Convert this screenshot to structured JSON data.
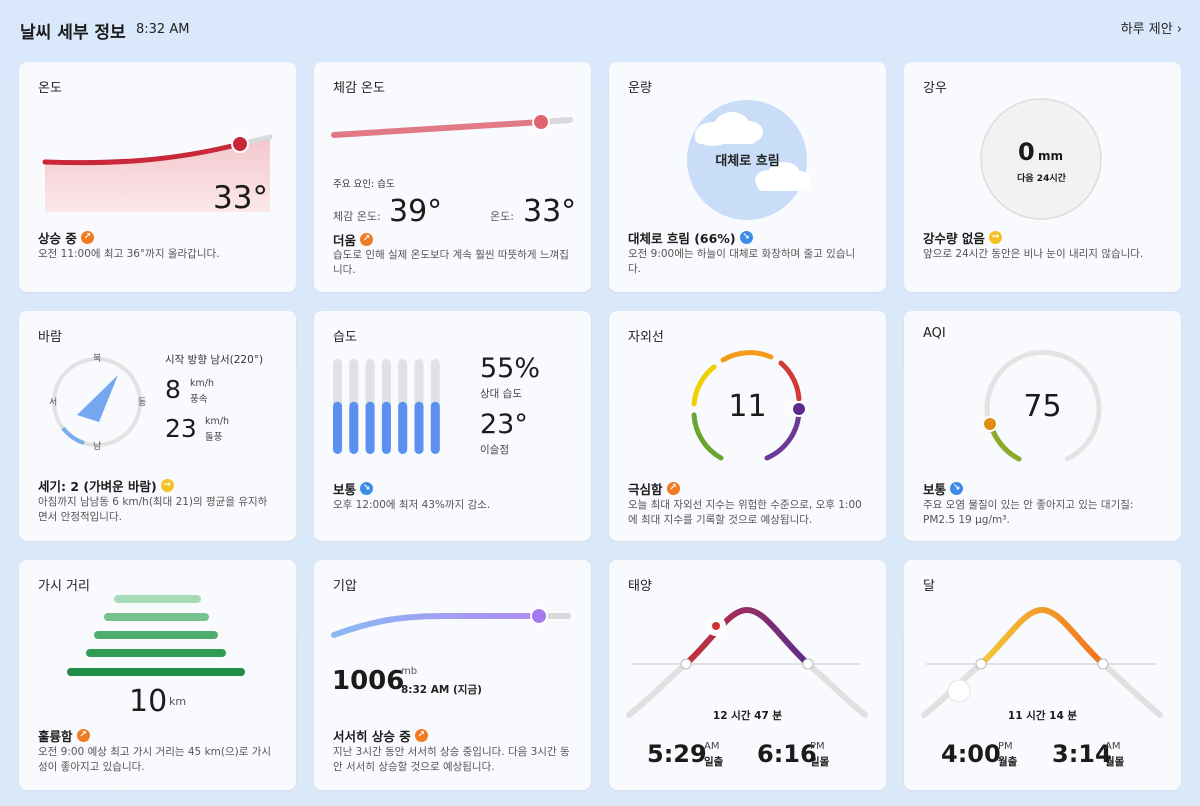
{
  "header": {
    "title": "날씨 세부 정보",
    "time": "8:32 AM",
    "next_label": "하루 제안 ›"
  },
  "temperature": {
    "title": "온도",
    "value": "33°",
    "status": "상승 중",
    "desc": "오전 11:00에 최고 36°까지 올라갑니다."
  },
  "feels_like": {
    "title": "체감 온도",
    "factor": "주요 요인: 습도",
    "feels_label": "체감 온도:",
    "feels_value": "39°",
    "temp_label": "온도:",
    "temp_value": "33°",
    "status": "더움",
    "desc": "습도로 인해 실제 온도보다 계속 훨씬 따뜻하게 느껴집니다."
  },
  "cloud": {
    "title": "운량",
    "center": "대체로 흐림",
    "status": "대체로 흐림 (66%)",
    "desc": "오전 9:00에는 하늘이 대체로 화창하며 줄고 있습니다."
  },
  "rain": {
    "title": "강우",
    "value": "0",
    "unit": "mm",
    "sub": "다음 24시간",
    "status": "강수량 없음",
    "desc": "앞으로 24시간 동안은 비나 눈이 내리지 않습니다."
  },
  "wind": {
    "title": "바람",
    "north": "북",
    "south": "남",
    "west": "서",
    "east": "동",
    "direction": "시작 방향 남서(220°)",
    "speed": "8",
    "speed_unit": "km/h",
    "speed_label": "풍속",
    "gust": "23",
    "gust_unit": "km/h",
    "gust_label": "돌풍",
    "status": "세기: 2 (가벼운 바람)",
    "desc": "아침까지 남남동 6 km/h(최대 21)의 평균을 유지하면서 안정적입니다."
  },
  "humidity": {
    "title": "습도",
    "value": "55%",
    "value_label": "상대 습도",
    "dew": "23°",
    "dew_label": "이슬점",
    "level": 0.55,
    "status": "보통",
    "desc": "오후 12:00에 최저 43%까지 감소."
  },
  "uv": {
    "title": "자외선",
    "value": "11",
    "status": "극심함",
    "desc": "오늘 최대 자외선 지수는 위험한 수준으로, 오후 1:00에 최대 지수를 기록할 것으로 예상됩니다."
  },
  "aqi": {
    "title": "AQI",
    "value": "75",
    "status": "보통",
    "desc": "주요 오염 물질이 있는 안 좋아지고 있는 대기질: PM2.5 19 µg/m³."
  },
  "visibility": {
    "title": "가시 거리",
    "value": "10",
    "unit": "km",
    "status": "훌륭함",
    "desc": "오전 9:00 예상 최고 가시 거리는 45 km(으)로 가시성이 좋아지고 있습니다."
  },
  "pressure": {
    "title": "기압",
    "value": "1006",
    "unit": "mb",
    "time": "8:32 AM (지금)",
    "status": "서서히 상승 중",
    "desc": "지난 3시간 동안 서서히 상승 중입니다. 다음 3시간 동안 서서히 상승할 것으로 예상됩니다."
  },
  "sun": {
    "title": "태양",
    "duration": "12 시간 47 분",
    "rise_time": "5:29",
    "rise_ampm": "AM",
    "rise_label": "일출",
    "set_time": "6:16",
    "set_ampm": "PM",
    "set_label": "일몰"
  },
  "moon": {
    "title": "달",
    "duration": "11 시간 14 분",
    "rise_time": "4:00",
    "rise_ampm": "PM",
    "rise_label": "월출",
    "set_time": "3:14",
    "set_ampm": "AM",
    "set_label": "월몰"
  },
  "colors": {
    "accent_orange": "#f07b22",
    "accent_blue": "#3c8ce7",
    "temp_red": "#c8283a",
    "humidity_blue": "#5b8ff0"
  }
}
